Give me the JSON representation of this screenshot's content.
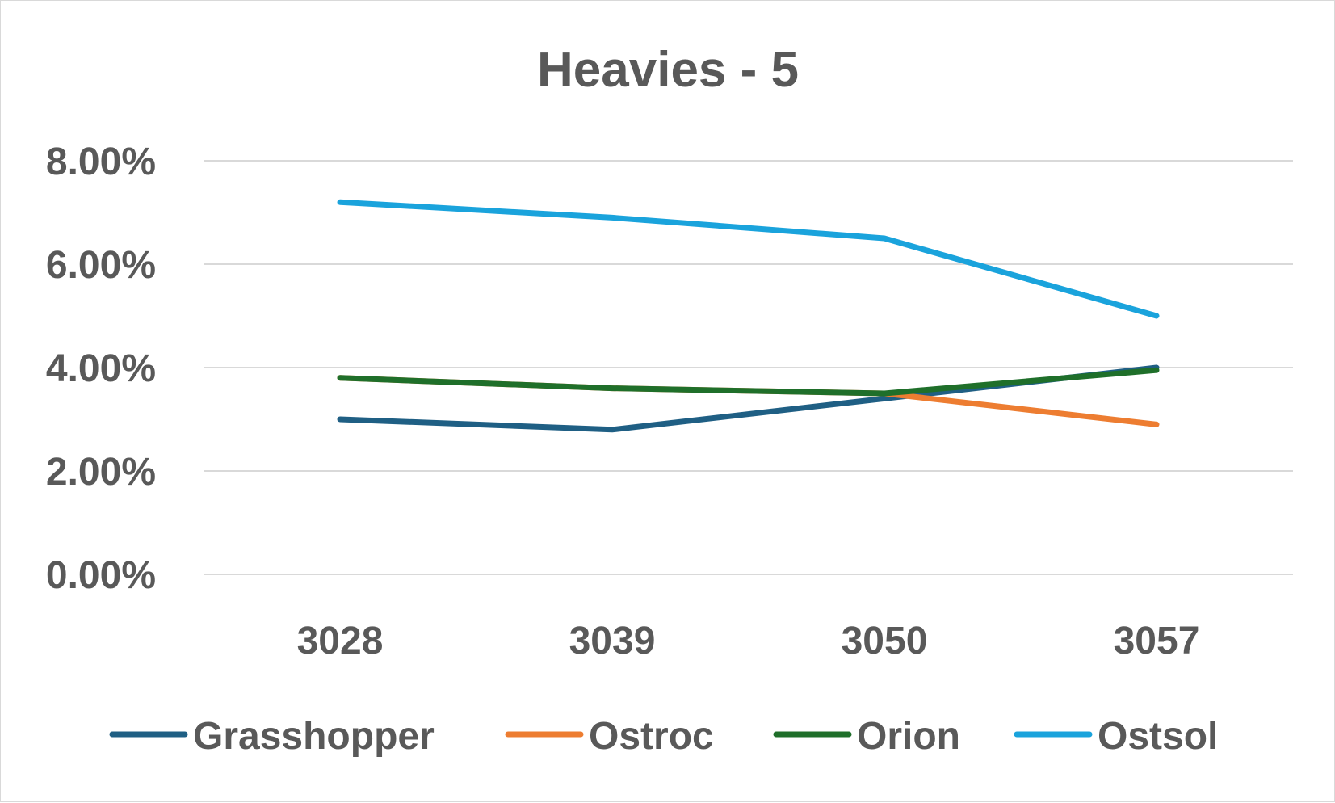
{
  "chart_data": {
    "type": "line",
    "title": "Heavies - 5",
    "xlabel": "",
    "ylabel": "",
    "categories": [
      "3028",
      "3039",
      "3050",
      "3057"
    ],
    "y_ticks": [
      "0.00%",
      "2.00%",
      "4.00%",
      "6.00%",
      "8.00%"
    ],
    "ylim": [
      0,
      8
    ],
    "y_unit": "%",
    "grid": true,
    "legend_position": "bottom",
    "series": [
      {
        "name": "Grasshopper",
        "color": "#1f5f84",
        "values": [
          3.0,
          2.8,
          3.4,
          4.0
        ]
      },
      {
        "name": "Ostroc",
        "color": "#ed7d31",
        "values": [
          3.8,
          3.6,
          3.5,
          2.9
        ]
      },
      {
        "name": "Orion",
        "color": "#1f6f2a",
        "values": [
          3.8,
          3.6,
          3.5,
          3.95
        ]
      },
      {
        "name": "Ostsol",
        "color": "#1aa3dc",
        "values": [
          7.2,
          6.9,
          6.5,
          5.0
        ]
      }
    ]
  }
}
